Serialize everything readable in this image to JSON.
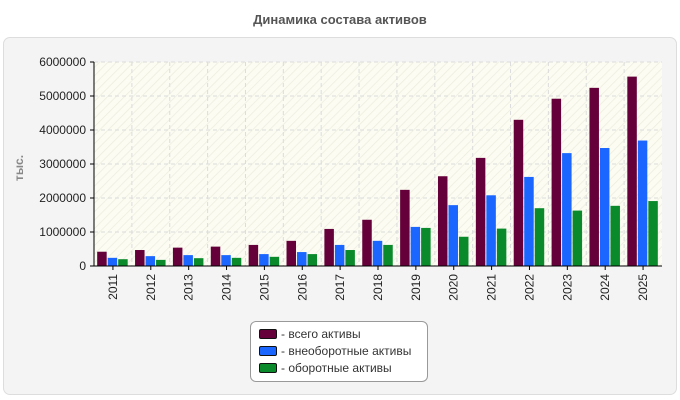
{
  "chart_data": {
    "type": "bar",
    "title": "Динамика состава активов",
    "ylabel": "тыс.",
    "xlabel": "",
    "ylim": [
      0,
      6000000
    ],
    "yticks": [
      0,
      1000000,
      2000000,
      3000000,
      4000000,
      5000000,
      6000000
    ],
    "grid": true,
    "legend_position": "bottom",
    "categories": [
      "2011",
      "2012",
      "2013",
      "2014",
      "2015",
      "2016",
      "2017",
      "2018",
      "2019",
      "2020",
      "2021",
      "2022",
      "2023",
      "2024",
      "2025"
    ],
    "series": [
      {
        "name": "- всего активы",
        "color": "#66003a",
        "values": [
          420000,
          470000,
          540000,
          570000,
          620000,
          740000,
          1090000,
          1360000,
          2240000,
          2640000,
          3180000,
          4300000,
          4920000,
          5240000,
          5570000
        ]
      },
      {
        "name": "- внеоборотные активы",
        "color": "#1a66ff",
        "values": [
          240000,
          290000,
          320000,
          320000,
          350000,
          410000,
          620000,
          740000,
          1150000,
          1790000,
          2080000,
          2620000,
          3320000,
          3470000,
          3690000
        ]
      },
      {
        "name": "- оборотные активы",
        "color": "#0a8a2a",
        "values": [
          200000,
          180000,
          230000,
          240000,
          270000,
          350000,
          470000,
          620000,
          1120000,
          860000,
          1100000,
          1700000,
          1630000,
          1770000,
          1910000
        ]
      }
    ]
  }
}
